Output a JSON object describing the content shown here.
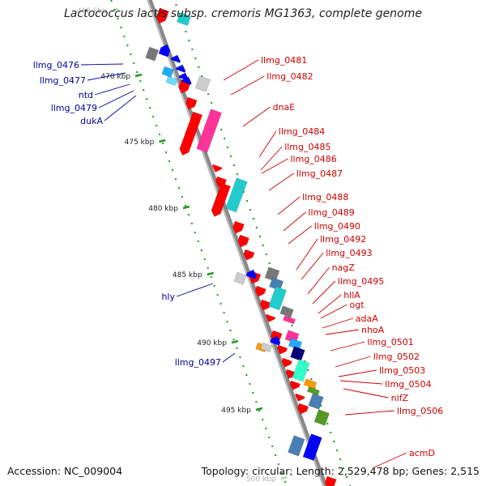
{
  "title": "Lactococcus lactis subsp. cremoris MG1363, complete genome",
  "footer": {
    "accession": "Accession: NC_009004",
    "summary": "Topology: circular; Length: 2,529,478 bp; Genes: 2,515"
  },
  "ticks": [
    {
      "label": "465 kbp",
      "faded": true
    },
    {
      "label": "470 kbp"
    },
    {
      "label": "475 kbp"
    },
    {
      "label": "480 kbp"
    },
    {
      "label": "485 kbp"
    },
    {
      "label": "490 kbp"
    },
    {
      "label": "495 kbp"
    },
    {
      "label": "500 kbp",
      "faded": true
    }
  ],
  "labels_right": [
    "llmg_0481",
    "llmg_0482",
    "dnaE",
    "llmg_0484",
    "llmg_0485",
    "llmg_0486",
    "llmg_0487",
    "llmg_0488",
    "llmg_0489",
    "llmg_0490",
    "llmg_0492",
    "llmg_0493",
    "nagZ",
    "llmg_0495",
    "hllA",
    "ogt",
    "adaA",
    "nhoA",
    "llmg_0501",
    "llmg_0502",
    "llmg_0503",
    "llmg_0504",
    "nifZ",
    "llmg_0506",
    "acmD"
  ],
  "labels_left": [
    "llmg_0476",
    "llmg_0477",
    "ntd",
    "llmg_0479",
    "dukA",
    "hly",
    "llmg_0497"
  ],
  "colors": {
    "forward_cds": "#ff0000",
    "reverse_cds": "#0000ff",
    "magenta": "#ff3399",
    "cyan": "#22cccc",
    "grey": "#777777",
    "light_grey": "#cccccc",
    "steel_blue": "#4a7fb5",
    "navy": "#000077",
    "green": "#559922",
    "orange": "#ff9900",
    "backbone": "#888888",
    "tick_green": "#229922",
    "label_red": "#cc0000",
    "label_blue": "#000099"
  }
}
